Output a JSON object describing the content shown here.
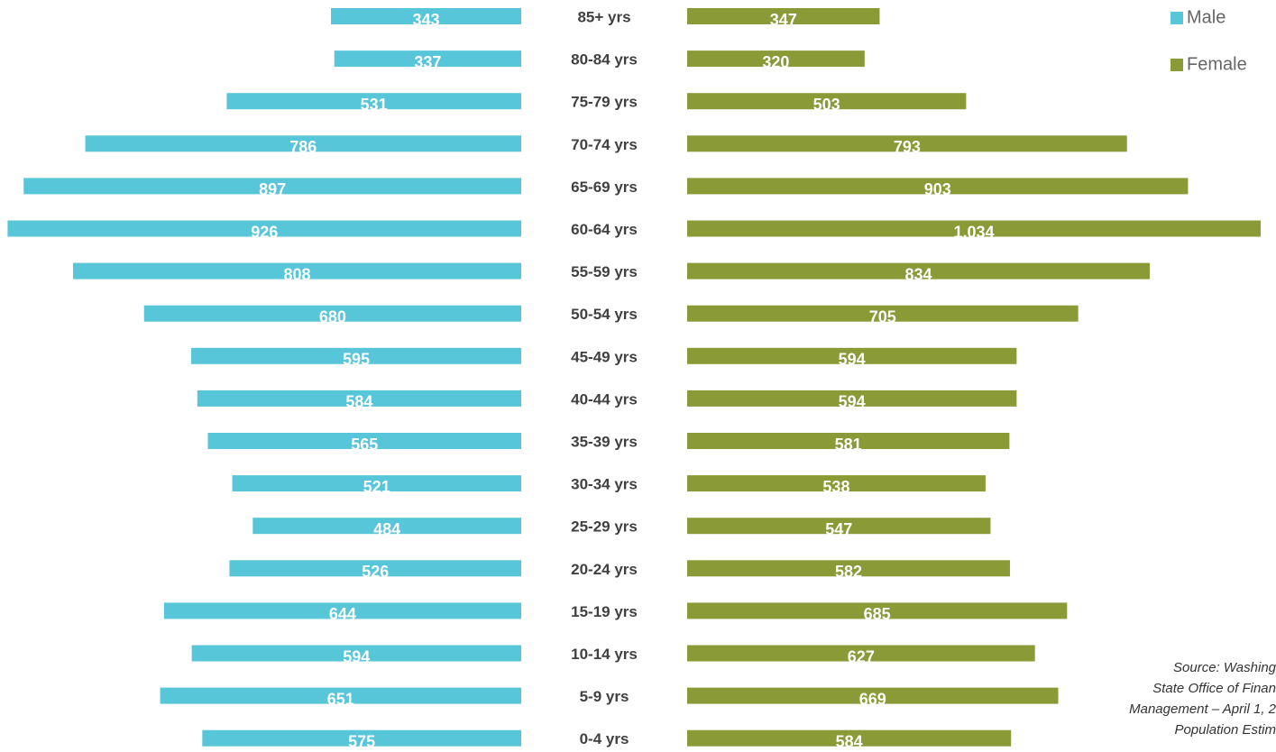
{
  "chart_data": {
    "type": "pyramid",
    "categories": [
      "85+ yrs",
      "80-84 yrs",
      "75-79 yrs",
      "70-74 yrs",
      "65-69 yrs",
      "60-64 yrs",
      "55-59 yrs",
      "50-54 yrs",
      "45-49 yrs",
      "40-44 yrs",
      "35-39 yrs",
      "30-34 yrs",
      "25-29 yrs",
      "20-24 yrs",
      "15-19 yrs",
      "10-14 yrs",
      "5-9 yrs",
      "0-4 yrs"
    ],
    "series": [
      {
        "name": "Male",
        "color": "#57c6d8",
        "side": "left",
        "values": [
          343,
          337,
          531,
          786,
          897,
          926,
          808,
          680,
          595,
          584,
          565,
          521,
          484,
          526,
          644,
          594,
          651,
          575
        ]
      },
      {
        "name": "Female",
        "color": "#8a9a37",
        "side": "right",
        "values": [
          347,
          320,
          503,
          793,
          903,
          1034,
          834,
          705,
          594,
          594,
          581,
          538,
          547,
          582,
          685,
          627,
          669,
          584
        ],
        "value_labels": [
          "347",
          "320",
          "503",
          "793",
          "903",
          "1,034",
          "834",
          "705",
          "594",
          "594",
          "581",
          "538",
          "547",
          "582",
          "685",
          "627",
          "669",
          "584"
        ]
      }
    ],
    "xlim": [
      0,
      1034
    ],
    "legend": "top-right",
    "annotation": [
      "Source: Washing",
      "State Office of Finan",
      "Management – April 1, 2",
      "Population Estim"
    ]
  }
}
